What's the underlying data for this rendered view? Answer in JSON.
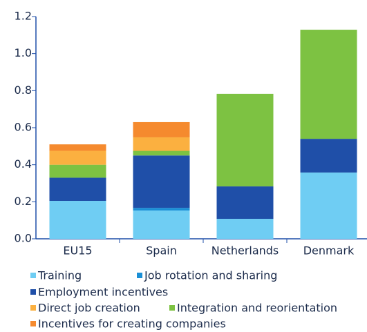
{
  "chart_data": {
    "type": "stacked_bar",
    "categories": [
      "EU15",
      "Spain",
      "Netherlands",
      "Denmark"
    ],
    "series": [
      {
        "name": "Training",
        "color": "#6fcdf3",
        "values": [
          0.205,
          0.153,
          0.108,
          0.358
        ]
      },
      {
        "name": "Job rotation and sharing",
        "color": "#1a8fd6",
        "values": [
          0,
          0.014,
          0,
          0
        ]
      },
      {
        "name": "Employment incentives",
        "color": "#1f4fa8",
        "values": [
          0.125,
          0.283,
          0.175,
          0.182
        ]
      },
      {
        "name": "Direct job creation",
        "color": "#fbb040",
        "values": [
          0.075,
          0.073,
          0,
          0
        ]
      },
      {
        "name": "Integration and reorientation",
        "color": "#7dc242",
        "values": [
          0.07,
          0.025,
          0.5,
          0.589
        ]
      },
      {
        "name": "Incentives for creating companies",
        "color": "#f58a2e",
        "values": [
          0.035,
          0.082,
          0,
          0
        ]
      }
    ],
    "ylim": [
      0,
      1.2
    ],
    "yticks": [
      {
        "value": 0,
        "label": "0.0"
      },
      {
        "value": 0.2,
        "label": "0.2"
      },
      {
        "value": 0.4,
        "label": "0.4"
      },
      {
        "value": 0.6,
        "label": "0.6"
      },
      {
        "value": 0.8,
        "label": "0.8"
      },
      {
        "value": 1.0,
        "label": "1.0"
      },
      {
        "value": 1.2,
        "label": "1.2"
      }
    ],
    "grid": false
  }
}
